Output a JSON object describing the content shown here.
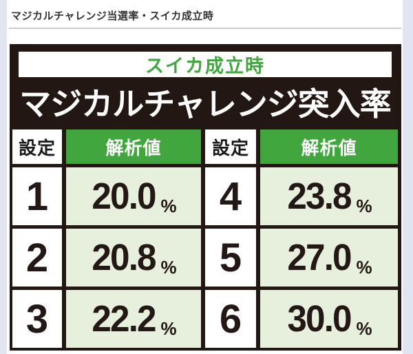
{
  "colors": {
    "page-bg": "#e1e5f1",
    "content-bg": "#ffffff",
    "dark": "#221712",
    "green": "#41a63d",
    "light-green": "#e6f0dd",
    "heading-text": "#333333",
    "number-text": "#231815",
    "rule": "#cbcbcb"
  },
  "heading": {
    "text": "マジカルチャレンジ当選率・スイカ成立時"
  },
  "chart_data": {
    "type": "table",
    "subtitle": "スイカ成立時",
    "title": "マジカルチャレンジ突入率",
    "columns": [
      "設定",
      "解析値",
      "設定",
      "解析値"
    ],
    "unit": "%",
    "settings": [
      1,
      2,
      3,
      4,
      5,
      6
    ],
    "values_percent": [
      20.0,
      20.8,
      22.2,
      23.8,
      27.0,
      30.0
    ],
    "rows": [
      {
        "s1": "1",
        "v1": "20.0",
        "s2": "4",
        "v2": "23.8"
      },
      {
        "s1": "2",
        "v1": "20.8",
        "s2": "5",
        "v2": "27.0"
      },
      {
        "s1": "3",
        "v1": "22.2",
        "s2": "6",
        "v2": "30.0"
      }
    ]
  }
}
